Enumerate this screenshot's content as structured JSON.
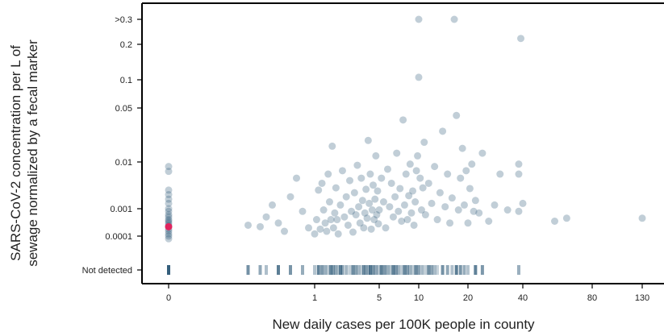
{
  "chart_data": {
    "type": "scatter",
    "title": "",
    "xlabel": "New daily cases per 100K people in county",
    "ylabel_lines": [
      "SARS-CoV-2 concentration per L of",
      "sewage normalized by a fecal marker"
    ],
    "x_ticks": [
      "0",
      "1",
      "5",
      "10",
      "20",
      "40",
      "80",
      "130"
    ],
    "y_ticks": [
      ">0.3",
      "0.2",
      "0.1",
      "0.05",
      "0.01",
      "0.001",
      "0.0001",
      "Not detected"
    ],
    "grid": false,
    "colors": {
      "points": "#1f4e6e",
      "highlight": "#e0245e",
      "axis": "#000000"
    },
    "highlight_point": {
      "x": 0,
      "y": 0.00022
    },
    "points": [
      [
        0,
        0.008
      ],
      [
        0,
        0.0063
      ],
      [
        0,
        0.0025
      ],
      [
        0,
        0.002
      ],
      [
        0,
        0.0016
      ],
      [
        0,
        0.0013
      ],
      [
        0,
        0.001
      ],
      [
        0,
        0.0008
      ],
      [
        0,
        0.0006
      ],
      [
        0,
        0.0005
      ],
      [
        0,
        0.0004
      ],
      [
        0,
        0.00035
      ],
      [
        0,
        0.0003
      ],
      [
        0,
        0.00025
      ],
      [
        0,
        0.00018
      ],
      [
        0,
        0.00015
      ],
      [
        0,
        0.00012
      ],
      [
        0,
        0.0001
      ],
      [
        0,
        8e-05
      ],
      [
        0.45,
        0.00025
      ],
      [
        0.55,
        0.00022
      ],
      [
        0.6,
        0.0005
      ],
      [
        0.65,
        0.0012
      ],
      [
        0.7,
        0.0003
      ],
      [
        0.75,
        0.00015
      ],
      [
        0.8,
        0.0018
      ],
      [
        0.85,
        0.0045
      ],
      [
        0.9,
        0.0008
      ],
      [
        0.95,
        0.0002
      ],
      [
        1.0,
        0.00012
      ],
      [
        1.05,
        0.0004
      ],
      [
        1.1,
        0.0025
      ],
      [
        1.15,
        0.00018
      ],
      [
        1.2,
        0.0035
      ],
      [
        1.25,
        0.0009
      ],
      [
        1.3,
        0.0003
      ],
      [
        1.35,
        0.00015
      ],
      [
        1.4,
        0.0055
      ],
      [
        1.45,
        0.0014
      ],
      [
        1.5,
        0.0004
      ],
      [
        1.55,
        0.016
      ],
      [
        1.6,
        0.0002
      ],
      [
        1.65,
        0.0007
      ],
      [
        1.7,
        0.0028
      ],
      [
        1.75,
        0.0004
      ],
      [
        1.8,
        0.00012
      ],
      [
        1.9,
        0.0012
      ],
      [
        2.0,
        0.0065
      ],
      [
        2.1,
        0.0005
      ],
      [
        2.2,
        0.0018
      ],
      [
        2.3,
        0.00025
      ],
      [
        2.4,
        0.004
      ],
      [
        2.5,
        0.0008
      ],
      [
        2.6,
        0.00014
      ],
      [
        2.7,
        0.0022
      ],
      [
        2.8,
        0.0006
      ],
      [
        2.9,
        0.0085
      ],
      [
        3.0,
        0.0011
      ],
      [
        3.1,
        0.0003
      ],
      [
        3.2,
        0.0045
      ],
      [
        3.3,
        0.0015
      ],
      [
        3.4,
        0.0002
      ],
      [
        3.5,
        0.0007
      ],
      [
        3.6,
        0.0026
      ],
      [
        3.7,
        0.00045
      ],
      [
        3.8,
        0.019
      ],
      [
        3.9,
        0.0013
      ],
      [
        4.0,
        0.0055
      ],
      [
        4.1,
        0.00018
      ],
      [
        4.2,
        0.0009
      ],
      [
        4.3,
        0.0032
      ],
      [
        4.4,
        0.0004
      ],
      [
        4.5,
        0.0016
      ],
      [
        4.6,
        0.012
      ],
      [
        4.7,
        0.0006
      ],
      [
        4.8,
        0.0024
      ],
      [
        4.9,
        0.00028
      ],
      [
        5.0,
        0.0009
      ],
      [
        5.2,
        0.0045
      ],
      [
        5.4,
        0.0014
      ],
      [
        5.6,
        0.0002
      ],
      [
        5.8,
        0.007
      ],
      [
        6.0,
        0.0011
      ],
      [
        6.2,
        0.0035
      ],
      [
        6.4,
        0.0005
      ],
      [
        6.6,
        0.0018
      ],
      [
        6.8,
        0.013
      ],
      [
        7.0,
        0.0008
      ],
      [
        7.2,
        0.0027
      ],
      [
        7.4,
        0.00035
      ],
      [
        7.6,
        0.035
      ],
      [
        7.8,
        0.0012
      ],
      [
        8.0,
        0.0055
      ],
      [
        8.2,
        0.0004
      ],
      [
        8.4,
        0.0019
      ],
      [
        8.6,
        0.009
      ],
      [
        8.8,
        0.0007
      ],
      [
        9.0,
        0.0024
      ],
      [
        9.2,
        0.00025
      ],
      [
        9.4,
        0.0014
      ],
      [
        9.6,
        0.0065
      ],
      [
        9.8,
        0.012
      ],
      [
        10.0,
        0.3
      ],
      [
        10.0,
        0.105
      ],
      [
        10.2,
        0.0045
      ],
      [
        10.4,
        0.0009
      ],
      [
        10.6,
        0.0028
      ],
      [
        10.8,
        0.018
      ],
      [
        11.0,
        0.0006
      ],
      [
        11.5,
        0.0035
      ],
      [
        12.0,
        0.0013
      ],
      [
        12.5,
        0.008
      ],
      [
        13.0,
        0.0004
      ],
      [
        13.5,
        0.0022
      ],
      [
        14.0,
        0.025
      ],
      [
        14.5,
        0.0011
      ],
      [
        15.0,
        0.0055
      ],
      [
        15.5,
        0.0003
      ],
      [
        16.0,
        0.0017
      ],
      [
        16.5,
        0.3
      ],
      [
        17.0,
        0.04
      ],
      [
        17.5,
        0.0009
      ],
      [
        18.0,
        0.0045
      ],
      [
        18.5,
        0.015
      ],
      [
        19.0,
        0.0012
      ],
      [
        19.5,
        0.0065
      ],
      [
        20.0,
        0.0003
      ],
      [
        20.5,
        0.0027
      ],
      [
        21.0,
        0.009
      ],
      [
        21.5,
        0.0008
      ],
      [
        22.0,
        0.0015
      ],
      [
        23.0,
        0.0007
      ],
      [
        24.0,
        0.013
      ],
      [
        26.0,
        0.00035
      ],
      [
        28.0,
        0.0012
      ],
      [
        30.0,
        0.0055
      ],
      [
        33.0,
        0.0009
      ],
      [
        38.0,
        0.0055
      ],
      [
        38.0,
        0.0008
      ],
      [
        38.0,
        0.009
      ],
      [
        39.0,
        0.22
      ],
      [
        40.0,
        0.0013
      ],
      [
        55.0,
        0.00035
      ],
      [
        62.0,
        0.00045
      ],
      [
        130.0,
        0.00045
      ]
    ],
    "not_detected_x": [
      0,
      0.45,
      0.55,
      0.6,
      0.7,
      0.8,
      0.9,
      1.0,
      1.1,
      1.2,
      1.3,
      1.4,
      1.5,
      1.6,
      1.7,
      1.8,
      1.9,
      2.0,
      2.2,
      2.4,
      2.6,
      2.8,
      3.0,
      3.2,
      3.4,
      3.6,
      3.8,
      4.0,
      4.3,
      4.6,
      4.9,
      5.2,
      5.5,
      5.8,
      6.1,
      6.4,
      6.7,
      7.0,
      7.4,
      7.8,
      8.2,
      8.6,
      9.0,
      9.5,
      10.0,
      10.5,
      11.0,
      11.5,
      12.0,
      12.5,
      13.0,
      14.0,
      15.0,
      16.0,
      17.0,
      18.0,
      19.0,
      20.0,
      22.0,
      24.0,
      38.0
    ]
  }
}
